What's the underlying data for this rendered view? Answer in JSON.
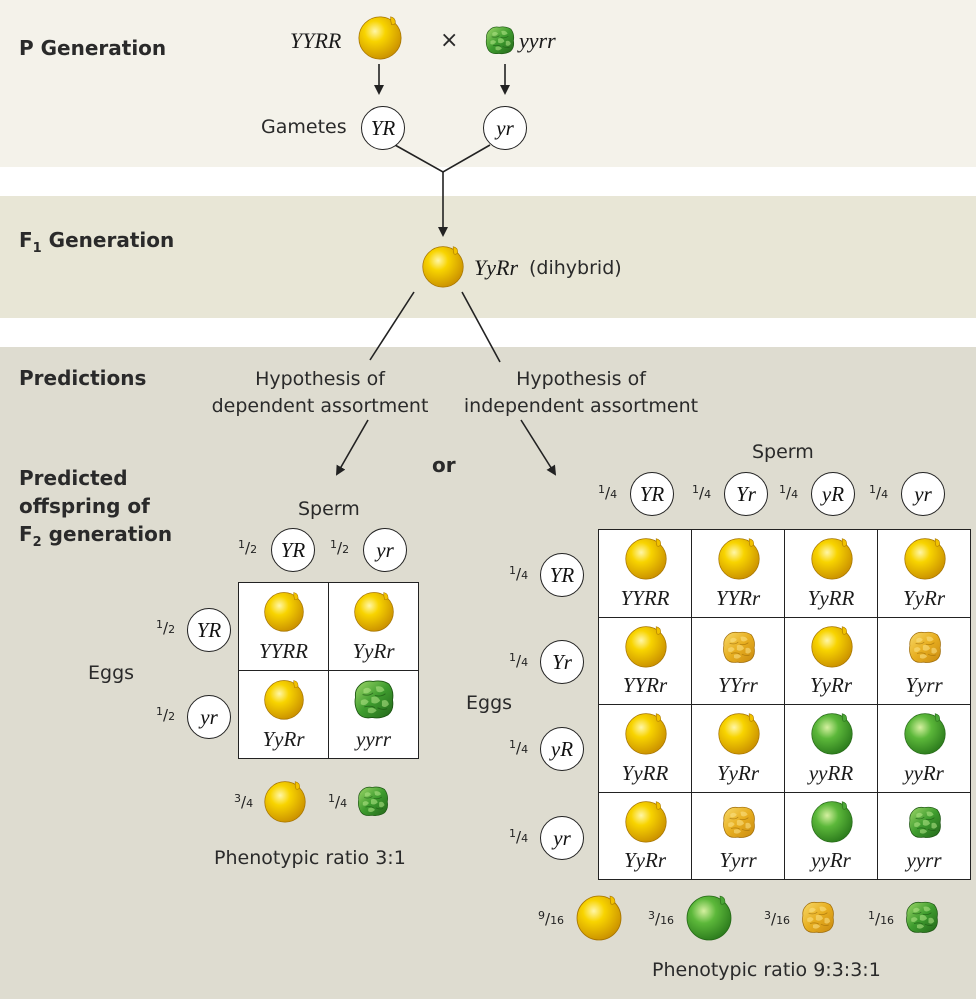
{
  "labels": {
    "p_generation": "P Generation",
    "f1_generation": "F",
    "f1_sub": "1",
    "f1_rest": " Generation",
    "predictions": "Predictions",
    "predicted_offspring_1": "Predicted",
    "predicted_offspring_2": "offspring of",
    "f2_prefix": "F",
    "f2_sub": "2",
    "f2_rest": " generation",
    "gametes": "Gametes",
    "cross": "×",
    "dihybrid": "(dihybrid)",
    "hyp_dependent_1": "Hypothesis of",
    "hyp_dependent_2": "dependent assortment",
    "hyp_independent_1": "Hypothesis of",
    "hyp_independent_2": "independent assortment",
    "or": "or",
    "sperm": "Sperm",
    "eggs": "Eggs"
  },
  "parents": {
    "left_genotype": "YYRR",
    "right_genotype": "yyrr",
    "gamete_left": "YR",
    "gamete_right": "yr",
    "f1_genotype": "YyRr"
  },
  "colors": {
    "band_p": "#f4f2ea",
    "band_f1": "#e8e6d6",
    "band_pred": "#dedcd0",
    "yellow_round": "#f6c400",
    "yellow_wrinkled": "#eab52a",
    "green_round": "#52b03a",
    "green_wrinkled": "#3d9a2c"
  },
  "dependent": {
    "sperm": [
      {
        "num": "1",
        "den": "2",
        "gamete": "YR"
      },
      {
        "num": "1",
        "den": "2",
        "gamete": "yr"
      }
    ],
    "eggs": [
      {
        "num": "1",
        "den": "2",
        "gamete": "YR"
      },
      {
        "num": "1",
        "den": "2",
        "gamete": "yr"
      }
    ],
    "cells": [
      [
        {
          "genotype": "YYRR",
          "pea": "yellow-round"
        },
        {
          "genotype": "YyRr",
          "pea": "yellow-round"
        }
      ],
      [
        {
          "genotype": "YyRr",
          "pea": "yellow-round"
        },
        {
          "genotype": "yyrr",
          "pea": "green-wrinkled"
        }
      ]
    ],
    "phenotypes": [
      {
        "num": "3",
        "den": "4",
        "pea": "yellow-round"
      },
      {
        "num": "1",
        "den": "4",
        "pea": "green-wrinkled"
      }
    ],
    "ratio": "Phenotypic ratio 3:1"
  },
  "independent": {
    "sperm": [
      {
        "num": "1",
        "den": "4",
        "gamete": "YR"
      },
      {
        "num": "1",
        "den": "4",
        "gamete": "Yr"
      },
      {
        "num": "1",
        "den": "4",
        "gamete": "yR"
      },
      {
        "num": "1",
        "den": "4",
        "gamete": "yr"
      }
    ],
    "eggs": [
      {
        "num": "1",
        "den": "4",
        "gamete": "YR"
      },
      {
        "num": "1",
        "den": "4",
        "gamete": "Yr"
      },
      {
        "num": "1",
        "den": "4",
        "gamete": "yR"
      },
      {
        "num": "1",
        "den": "4",
        "gamete": "yr"
      }
    ],
    "cells": [
      [
        {
          "genotype": "YYRR",
          "pea": "yellow-round"
        },
        {
          "genotype": "YYRr",
          "pea": "yellow-round"
        },
        {
          "genotype": "YyRR",
          "pea": "yellow-round"
        },
        {
          "genotype": "YyRr",
          "pea": "yellow-round"
        }
      ],
      [
        {
          "genotype": "YYRr",
          "pea": "yellow-round"
        },
        {
          "genotype": "YYrr",
          "pea": "yellow-wrinkled"
        },
        {
          "genotype": "YyRr",
          "pea": "yellow-round"
        },
        {
          "genotype": "Yyrr",
          "pea": "yellow-wrinkled"
        }
      ],
      [
        {
          "genotype": "YyRR",
          "pea": "yellow-round"
        },
        {
          "genotype": "YyRr",
          "pea": "yellow-round"
        },
        {
          "genotype": "yyRR",
          "pea": "green-round"
        },
        {
          "genotype": "yyRr",
          "pea": "green-round"
        }
      ],
      [
        {
          "genotype": "YyRr",
          "pea": "yellow-round"
        },
        {
          "genotype": "Yyrr",
          "pea": "yellow-wrinkled"
        },
        {
          "genotype": "yyRr",
          "pea": "green-round"
        },
        {
          "genotype": "yyrr",
          "pea": "green-wrinkled"
        }
      ]
    ],
    "phenotypes": [
      {
        "num": "9",
        "den": "16",
        "pea": "yellow-round"
      },
      {
        "num": "3",
        "den": "16",
        "pea": "green-round"
      },
      {
        "num": "3",
        "den": "16",
        "pea": "yellow-wrinkled"
      },
      {
        "num": "1",
        "den": "16",
        "pea": "green-wrinkled"
      }
    ],
    "ratio": "Phenotypic ratio 9:3:3:1"
  }
}
